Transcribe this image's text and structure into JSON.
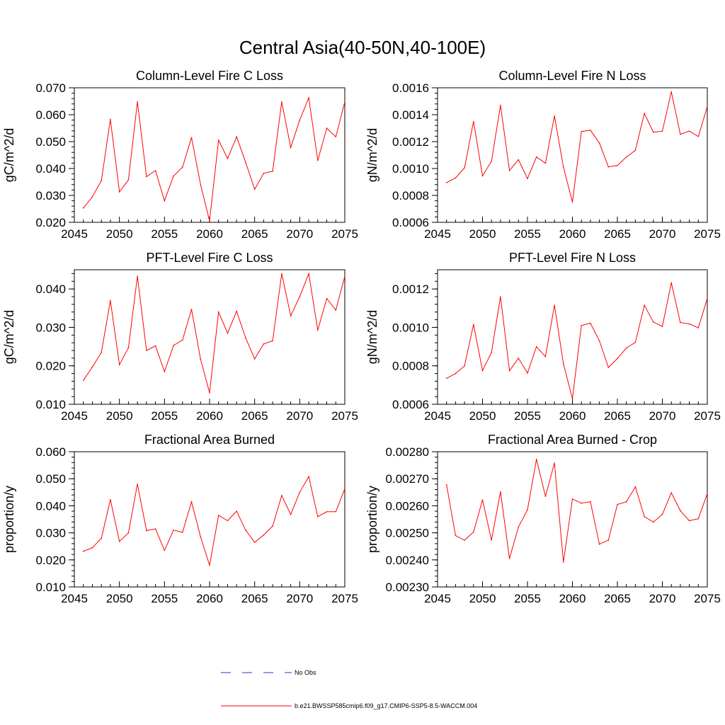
{
  "main_title": "Central Asia(40-50N,40-100E)",
  "colors": {
    "series": "#ff0000",
    "obs": "#3333cc",
    "axis": "#000000"
  },
  "legend": {
    "obs_label": "No Obs",
    "model_label": "b.e21.BWSSP585cmip6.f09_g17.CMIP6-SSP5-8.5-WACCM.004"
  },
  "chart_data": [
    {
      "id": "col-fire-c",
      "type": "line",
      "title": "Column-Level Fire C Loss",
      "ylabel": "gC/m^2/d",
      "xlim": [
        2045,
        2075
      ],
      "ylim": [
        0.02,
        0.07
      ],
      "yticks": [
        "0.020",
        "0.030",
        "0.040",
        "0.050",
        "0.060",
        "0.070"
      ],
      "xticks": [
        "2045",
        "2050",
        "2055",
        "2060",
        "2065",
        "2070",
        "2075"
      ],
      "x": [
        2046,
        2047,
        2048,
        2049,
        2050,
        2051,
        2052,
        2053,
        2054,
        2055,
        2056,
        2057,
        2058,
        2059,
        2060,
        2061,
        2062,
        2063,
        2064,
        2065,
        2066,
        2067,
        2068,
        2069,
        2070,
        2071,
        2072,
        2073,
        2074,
        2075
      ],
      "values": [
        0.0253,
        0.0295,
        0.0355,
        0.0583,
        0.0313,
        0.0358,
        0.0648,
        0.037,
        0.0392,
        0.028,
        0.0372,
        0.0405,
        0.0515,
        0.034,
        0.0205,
        0.0505,
        0.0437,
        0.0518,
        0.0423,
        0.0323,
        0.0382,
        0.039,
        0.0648,
        0.0478,
        0.058,
        0.0663,
        0.043,
        0.055,
        0.0518,
        0.0648
      ]
    },
    {
      "id": "col-fire-n",
      "type": "line",
      "title": "Column-Level Fire N Loss",
      "ylabel": "gN/m^2/d",
      "xlim": [
        2045,
        2075
      ],
      "ylim": [
        0.0006,
        0.0016
      ],
      "yticks": [
        "0.0006",
        "0.0008",
        "0.0010",
        "0.0012",
        "0.0014",
        "0.0016"
      ],
      "xticks": [
        "2045",
        "2050",
        "2055",
        "2060",
        "2065",
        "2070",
        "2075"
      ],
      "x": [
        2046,
        2047,
        2048,
        2049,
        2050,
        2051,
        2052,
        2053,
        2054,
        2055,
        2056,
        2057,
        2058,
        2059,
        2060,
        2061,
        2062,
        2063,
        2064,
        2065,
        2066,
        2067,
        2068,
        2069,
        2070,
        2071,
        2072,
        2073,
        2074,
        2075
      ],
      "values": [
        0.000895,
        0.00093,
        0.001005,
        0.00135,
        0.000945,
        0.001055,
        0.00147,
        0.000985,
        0.001065,
        0.000925,
        0.001085,
        0.00104,
        0.00139,
        0.00101,
        0.00075,
        0.001275,
        0.001285,
        0.00119,
        0.001012,
        0.001022,
        0.001085,
        0.001135,
        0.00141,
        0.00127,
        0.001278,
        0.00157,
        0.001255,
        0.001278,
        0.001238,
        0.00146
      ]
    },
    {
      "id": "pft-fire-c",
      "type": "line",
      "title": "PFT-Level Fire C Loss",
      "ylabel": "gC/m^2/d",
      "xlim": [
        2045,
        2075
      ],
      "ylim": [
        0.01,
        0.045
      ],
      "yticks": [
        "0.010",
        "0.020",
        "0.030",
        "0.040"
      ],
      "xticks": [
        "2045",
        "2050",
        "2055",
        "2060",
        "2065",
        "2070",
        "2075"
      ],
      "x": [
        2046,
        2047,
        2048,
        2049,
        2050,
        2051,
        2052,
        2053,
        2054,
        2055,
        2056,
        2057,
        2058,
        2059,
        2060,
        2061,
        2062,
        2063,
        2064,
        2065,
        2066,
        2067,
        2068,
        2069,
        2070,
        2071,
        2072,
        2073,
        2074,
        2075
      ],
      "values": [
        0.0162,
        0.0197,
        0.0235,
        0.037,
        0.0203,
        0.0247,
        0.0433,
        0.024,
        0.0252,
        0.0185,
        0.0253,
        0.0267,
        0.0347,
        0.0217,
        0.013,
        0.034,
        0.0285,
        0.0342,
        0.0273,
        0.0218,
        0.0257,
        0.0265,
        0.044,
        0.033,
        0.038,
        0.044,
        0.0293,
        0.0375,
        0.0345,
        0.0433
      ]
    },
    {
      "id": "pft-fire-n",
      "type": "line",
      "title": "PFT-Level Fire N Loss",
      "ylabel": "gN/m^2/d",
      "xlim": [
        2045,
        2075
      ],
      "ylim": [
        0.0006,
        0.0013
      ],
      "yticks": [
        "0.0006",
        "0.0008",
        "0.0010",
        "0.0012"
      ],
      "xticks": [
        "2045",
        "2050",
        "2055",
        "2060",
        "2065",
        "2070",
        "2075"
      ],
      "x": [
        2046,
        2047,
        2048,
        2049,
        2050,
        2051,
        2052,
        2053,
        2054,
        2055,
        2056,
        2057,
        2058,
        2059,
        2060,
        2061,
        2062,
        2063,
        2064,
        2065,
        2066,
        2067,
        2068,
        2069,
        2070,
        2071,
        2072,
        2073,
        2074,
        2075
      ],
      "values": [
        0.000735,
        0.00076,
        0.0008,
        0.001015,
        0.000775,
        0.00087,
        0.00116,
        0.000775,
        0.00084,
        0.000762,
        0.0009,
        0.000848,
        0.001115,
        0.00081,
        0.00063,
        0.00101,
        0.001022,
        0.00093,
        0.000792,
        0.000838,
        0.000893,
        0.000922,
        0.001115,
        0.001028,
        0.001005,
        0.001232,
        0.001025,
        0.001018,
        0.000998,
        0.00115
      ]
    },
    {
      "id": "frac-area-burned",
      "type": "line",
      "title": "Fractional Area Burned",
      "ylabel": "proportion/y",
      "xlim": [
        2045,
        2075
      ],
      "ylim": [
        0.01,
        0.06
      ],
      "yticks": [
        "0.010",
        "0.020",
        "0.030",
        "0.040",
        "0.050",
        "0.060"
      ],
      "xticks": [
        "2045",
        "2050",
        "2055",
        "2060",
        "2065",
        "2070",
        "2075"
      ],
      "x": [
        2046,
        2047,
        2048,
        2049,
        2050,
        2051,
        2052,
        2053,
        2054,
        2055,
        2056,
        2057,
        2058,
        2059,
        2060,
        2061,
        2062,
        2063,
        2064,
        2065,
        2066,
        2067,
        2068,
        2069,
        2070,
        2071,
        2072,
        2073,
        2074,
        2075
      ],
      "values": [
        0.0232,
        0.0245,
        0.028,
        0.0423,
        0.0268,
        0.03,
        0.048,
        0.0308,
        0.0315,
        0.0235,
        0.031,
        0.0302,
        0.0415,
        0.0285,
        0.018,
        0.0365,
        0.0345,
        0.038,
        0.031,
        0.0265,
        0.0292,
        0.0325,
        0.0438,
        0.0368,
        0.045,
        0.0508,
        0.036,
        0.0378,
        0.0378,
        0.0463
      ]
    },
    {
      "id": "frac-area-burned-crop",
      "type": "line",
      "title": "Fractional Area Burned - Crop",
      "ylabel": "proportion/y",
      "xlim": [
        2045,
        2075
      ],
      "ylim": [
        0.0023,
        0.0028
      ],
      "yticks": [
        "0.00230",
        "0.00240",
        "0.00250",
        "0.00260",
        "0.00270",
        "0.00280"
      ],
      "xticks": [
        "2045",
        "2050",
        "2055",
        "2060",
        "2065",
        "2070",
        "2075"
      ],
      "x": [
        2046,
        2047,
        2048,
        2049,
        2050,
        2051,
        2052,
        2053,
        2054,
        2055,
        2056,
        2057,
        2058,
        2059,
        2060,
        2061,
        2062,
        2063,
        2064,
        2065,
        2066,
        2067,
        2068,
        2069,
        2070,
        2071,
        2072,
        2073,
        2074,
        2075
      ],
      "values": [
        0.002678,
        0.00249,
        0.002473,
        0.002503,
        0.002622,
        0.002473,
        0.002652,
        0.002405,
        0.002522,
        0.002585,
        0.002772,
        0.002635,
        0.002758,
        0.002392,
        0.002625,
        0.00261,
        0.002615,
        0.002458,
        0.002473,
        0.002605,
        0.002615,
        0.00267,
        0.00256,
        0.00254,
        0.002568,
        0.002648,
        0.002582,
        0.002545,
        0.002552,
        0.002645
      ]
    }
  ]
}
